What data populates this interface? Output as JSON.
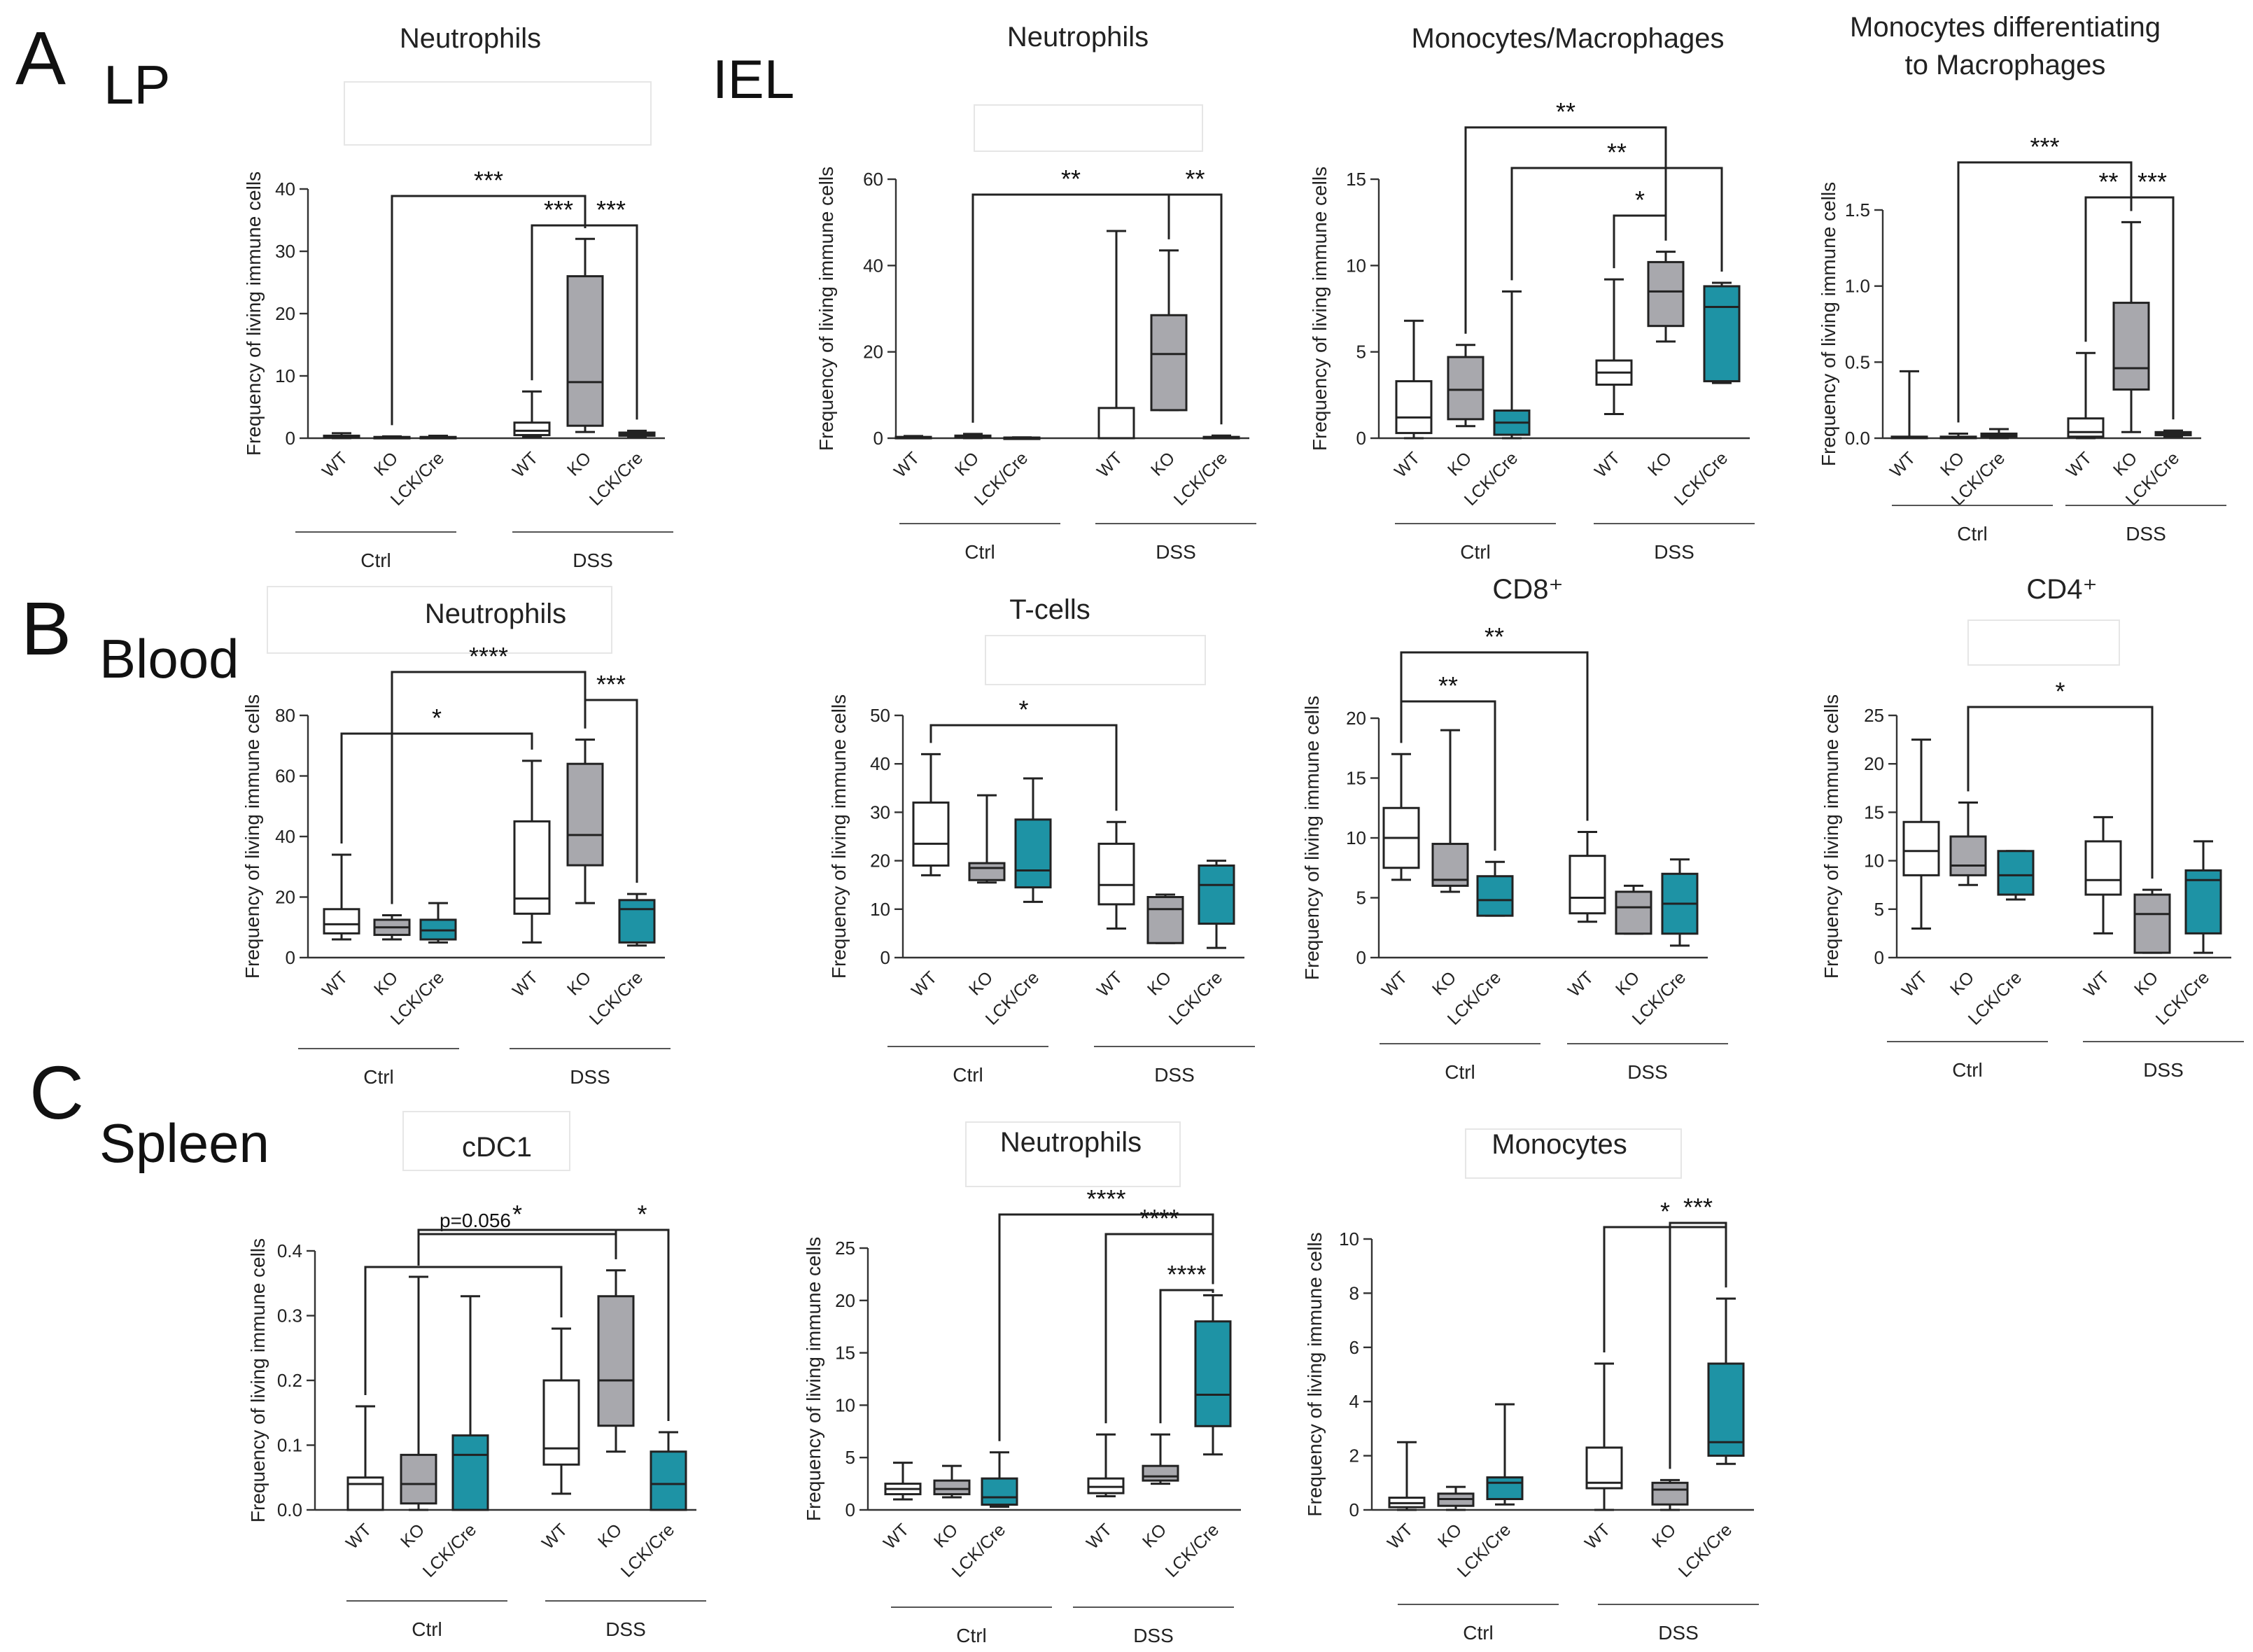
{
  "colors": {
    "WT": "#ffffff",
    "KO": "#a8a8ad",
    "LCK/Cre": "#1e93a5",
    "line": "#222222"
  },
  "sections": [
    {
      "letter": "A",
      "tissue": "LP"
    },
    {
      "letter": "",
      "tissue": "IEL"
    },
    {
      "letter": "B",
      "tissue": "Blood"
    },
    {
      "letter": "C",
      "tissue": "Spleen"
    }
  ],
  "groups": [
    "Ctrl",
    "DSS"
  ],
  "genotypes": [
    "WT",
    "KO",
    "LCK/Cre"
  ],
  "ylabel": "Frequency of living immune cells",
  "chart_data": [
    {
      "id": "lp-neutrophils",
      "type": "boxplot",
      "title": "Neutrophils",
      "ylabel": "Frequency of living immune cells",
      "ylim": [
        0,
        40
      ],
      "ticks": [
        0,
        10,
        20,
        30,
        40
      ],
      "tick_labels": [
        "0",
        "10",
        "20",
        "30",
        "40"
      ],
      "categories": [
        "WT",
        "KO",
        "LCK/Cre",
        "WT",
        "KO",
        "LCK/Cre"
      ],
      "groups": [
        "Ctrl",
        "DSS"
      ],
      "boxes": [
        [
          0.0,
          0.1,
          0.2,
          0.4,
          0.8
        ],
        [
          0.0,
          0.05,
          0.1,
          0.2,
          0.3
        ],
        [
          0.0,
          0.05,
          0.1,
          0.2,
          0.4
        ],
        [
          0.2,
          0.5,
          1.2,
          2.5,
          7.5
        ],
        [
          1.0,
          2.0,
          9.0,
          26.0,
          32.0
        ],
        [
          0.2,
          0.4,
          0.6,
          0.9,
          1.2
        ]
      ],
      "significance": [
        {
          "from": 1,
          "to": 4,
          "label": "***",
          "level": 3
        },
        {
          "from": 3,
          "to": 4,
          "label": "***",
          "level": 1
        },
        {
          "from": 4,
          "to": 5,
          "label": "***",
          "level": 1
        }
      ]
    },
    {
      "id": "iel-neutrophils",
      "type": "boxplot",
      "title": "Neutrophils",
      "ylabel": "Frequency of living immune cells",
      "ylim": [
        0,
        60
      ],
      "ticks": [
        0,
        20,
        40,
        60
      ],
      "tick_labels": [
        "0",
        "20",
        "40",
        "60"
      ],
      "categories": [
        "WT",
        "KO",
        "LCK/Cre",
        "WT",
        "KO",
        "LCK/Cre"
      ],
      "groups": [
        "Ctrl",
        "DSS"
      ],
      "boxes": [
        [
          0.0,
          0.1,
          0.2,
          0.3,
          0.5
        ],
        [
          0.0,
          0.2,
          0.4,
          0.6,
          1.0
        ],
        [
          0.0,
          0.05,
          0.1,
          0.15,
          0.2
        ],
        [
          0.0,
          0.0,
          0.0,
          7.0,
          48.0
        ],
        [
          6.5,
          6.5,
          19.5,
          28.5,
          43.5
        ],
        [
          0.0,
          0.1,
          0.2,
          0.3,
          0.6
        ]
      ],
      "significance": [
        {
          "from": 1,
          "to": 4,
          "label": "**",
          "level": 2
        },
        {
          "from": 4,
          "to": 5,
          "label": "**",
          "level": 2
        }
      ]
    },
    {
      "id": "iel-mono-mac",
      "type": "boxplot",
      "title": "Monocytes/Macrophages",
      "ylabel": "Frequency of living immune cells",
      "ylim": [
        0,
        15
      ],
      "ticks": [
        0,
        5,
        10,
        15
      ],
      "tick_labels": [
        "0",
        "5",
        "10",
        "15"
      ],
      "categories": [
        "WT",
        "KO",
        "LCK/Cre",
        "WT",
        "KO",
        "LCK/Cre"
      ],
      "groups": [
        "Ctrl",
        "DSS"
      ],
      "boxes": [
        [
          0.0,
          0.3,
          1.2,
          3.3,
          6.8
        ],
        [
          0.7,
          1.1,
          2.8,
          4.7,
          5.4
        ],
        [
          0.0,
          0.2,
          0.9,
          1.6,
          8.5
        ],
        [
          1.4,
          3.1,
          3.8,
          4.5,
          9.2
        ],
        [
          5.6,
          6.5,
          8.5,
          10.2,
          10.8
        ],
        [
          3.2,
          3.3,
          7.6,
          8.8,
          9.0
        ]
      ],
      "significance": [
        {
          "from": 1,
          "to": 4,
          "label": "**",
          "level": 3
        },
        {
          "from": 2,
          "to": 5,
          "label": "**",
          "level": 2
        },
        {
          "from": 3,
          "to": 4,
          "label": "*",
          "level": 1
        }
      ]
    },
    {
      "id": "iel-mono-diff",
      "type": "boxplot",
      "title": "Monocytes differentiating to Macrophages",
      "title_lines": [
        "Monocytes differentiating",
        "to Macrophages"
      ],
      "ylabel": "Frequency of living immune cells",
      "ylim": [
        0,
        1.5
      ],
      "ticks": [
        0,
        0.5,
        1.0,
        1.5
      ],
      "tick_labels": [
        "0.0",
        "0.5",
        "1.0",
        "1.5"
      ],
      "categories": [
        "WT",
        "KO",
        "LCK/Cre",
        "WT",
        "KO",
        "LCK/Cre"
      ],
      "groups": [
        "Ctrl",
        "DSS"
      ],
      "boxes": [
        [
          0.0,
          0.0,
          0.0,
          0.01,
          0.44
        ],
        [
          0.0,
          0.0,
          0.0,
          0.01,
          0.03
        ],
        [
          0.0,
          0.01,
          0.02,
          0.03,
          0.06
        ],
        [
          0.0,
          0.01,
          0.04,
          0.13,
          0.56
        ],
        [
          0.04,
          0.32,
          0.46,
          0.89,
          1.42
        ],
        [
          0.01,
          0.02,
          0.03,
          0.04,
          0.05
        ]
      ],
      "significance": [
        {
          "from": 1,
          "to": 4,
          "label": "***",
          "level": 3
        },
        {
          "from": 3,
          "to": 4,
          "label": "**",
          "level": 1
        },
        {
          "from": 4,
          "to": 5,
          "label": "***",
          "level": 1
        }
      ]
    },
    {
      "id": "blood-neutrophils",
      "type": "boxplot",
      "title": "Neutrophils",
      "ylabel": "Frequency of living immune cells",
      "ylim": [
        0,
        80
      ],
      "ticks": [
        0,
        20,
        40,
        60,
        80
      ],
      "tick_labels": [
        "0",
        "20",
        "40",
        "60",
        "80"
      ],
      "categories": [
        "WT",
        "KO",
        "LCK/Cre",
        "WT",
        "KO",
        "LCK/Cre"
      ],
      "groups": [
        "Ctrl",
        "DSS"
      ],
      "boxes": [
        [
          6.0,
          8.0,
          11.0,
          16.0,
          34.0
        ],
        [
          6.0,
          7.5,
          10.0,
          12.5,
          14.0
        ],
        [
          5.0,
          6.0,
          9.0,
          12.5,
          18.0
        ],
        [
          5.0,
          14.5,
          19.5,
          45.0,
          65.0
        ],
        [
          18.0,
          30.5,
          40.5,
          64.0,
          72.0
        ],
        [
          4.0,
          5.0,
          16.0,
          19.0,
          21.0
        ]
      ],
      "significance": [
        {
          "from": 0,
          "to": 3,
          "label": "*",
          "level": 1
        },
        {
          "from": 1,
          "to": 4,
          "label": "****",
          "level": 3
        },
        {
          "from": 4,
          "to": 5,
          "label": "***",
          "level": 2
        }
      ]
    },
    {
      "id": "blood-tcells",
      "type": "boxplot",
      "title": "T-cells",
      "ylabel": "Frequency of living immune cells",
      "ylim": [
        0,
        50
      ],
      "ticks": [
        0,
        10,
        20,
        30,
        40,
        50
      ],
      "tick_labels": [
        "0",
        "10",
        "20",
        "30",
        "40",
        "50"
      ],
      "categories": [
        "WT",
        "KO",
        "LCK/Cre",
        "WT",
        "KO",
        "LCK/Cre"
      ],
      "groups": [
        "Ctrl",
        "DSS"
      ],
      "boxes": [
        [
          17.0,
          19.0,
          23.5,
          32.0,
          42.0
        ],
        [
          15.5,
          16.0,
          18.5,
          19.5,
          33.5
        ],
        [
          11.5,
          14.5,
          18.0,
          28.5,
          37.0
        ],
        [
          6.0,
          11.0,
          15.0,
          23.5,
          28.0
        ],
        [
          3.0,
          3.0,
          10.0,
          12.5,
          13.0
        ],
        [
          2.0,
          7.0,
          15.0,
          19.0,
          20.0
        ]
      ],
      "significance": [
        {
          "from": 0,
          "to": 3,
          "label": "*",
          "level": 1
        }
      ]
    },
    {
      "id": "blood-cd8",
      "type": "boxplot",
      "title": "CD8⁺",
      "ylabel": "Frequency of living immune cells",
      "ylim": [
        0,
        20
      ],
      "ticks": [
        0,
        5,
        10,
        15,
        20
      ],
      "tick_labels": [
        "0",
        "5",
        "10",
        "15",
        "20"
      ],
      "categories": [
        "WT",
        "KO",
        "LCK/Cre",
        "WT",
        "KO",
        "LCK/Cre"
      ],
      "groups": [
        "Ctrl",
        "DSS"
      ],
      "boxes": [
        [
          6.5,
          7.5,
          10.0,
          12.5,
          17.0
        ],
        [
          5.5,
          6.0,
          6.5,
          9.5,
          19.0
        ],
        [
          3.5,
          3.5,
          4.8,
          6.8,
          8.0
        ],
        [
          3.0,
          3.7,
          5.0,
          8.5,
          10.5
        ],
        [
          2.0,
          2.0,
          4.2,
          5.5,
          6.0
        ],
        [
          1.0,
          2.0,
          4.5,
          7.0,
          8.2
        ]
      ],
      "significance": [
        {
          "from": 0,
          "to": 2,
          "label": "**",
          "level": 1
        },
        {
          "from": 0,
          "to": 3,
          "label": "**",
          "level": 2
        }
      ]
    },
    {
      "id": "blood-cd4",
      "type": "boxplot",
      "title": "CD4⁺",
      "ylabel": "Frequency of living immune cells",
      "ylim": [
        0,
        25
      ],
      "ticks": [
        0,
        5,
        10,
        15,
        20,
        25
      ],
      "tick_labels": [
        "0",
        "5",
        "10",
        "15",
        "20",
        "25"
      ],
      "categories": [
        "WT",
        "KO",
        "LCK/Cre",
        "WT",
        "KO",
        "LCK/Cre"
      ],
      "groups": [
        "Ctrl",
        "DSS"
      ],
      "boxes": [
        [
          3.0,
          8.5,
          11.0,
          14.0,
          22.5
        ],
        [
          7.5,
          8.5,
          9.5,
          12.5,
          16.0
        ],
        [
          6.0,
          6.5,
          8.5,
          11.0,
          11.0
        ],
        [
          2.5,
          6.5,
          8.0,
          12.0,
          14.5
        ],
        [
          0.5,
          0.5,
          4.5,
          6.5,
          7.0
        ],
        [
          0.5,
          2.5,
          8.0,
          9.0,
          12.0
        ]
      ],
      "significance": [
        {
          "from": 1,
          "to": 4,
          "label": "*",
          "level": 1
        }
      ]
    },
    {
      "id": "spleen-cdc1",
      "type": "boxplot",
      "title": "cDC1",
      "ylabel": "Frequency of living immune cells",
      "ylim": [
        0,
        0.4
      ],
      "ticks": [
        0,
        0.1,
        0.2,
        0.3,
        0.4
      ],
      "tick_labels": [
        "0.0",
        "0.1",
        "0.2",
        "0.3",
        "0.4"
      ],
      "categories": [
        "WT",
        "KO",
        "LCK/Cre",
        "WT",
        "KO",
        "LCK/Cre"
      ],
      "groups": [
        "Ctrl",
        "DSS"
      ],
      "boxes": [
        [
          0.0,
          0.0,
          0.04,
          0.05,
          0.16
        ],
        [
          0.0,
          0.01,
          0.04,
          0.085,
          0.36
        ],
        [
          0.0,
          0.0,
          0.085,
          0.115,
          0.33
        ],
        [
          0.025,
          0.07,
          0.095,
          0.2,
          0.28
        ],
        [
          0.09,
          0.13,
          0.2,
          0.33,
          0.37
        ],
        [
          0.0,
          0.0,
          0.04,
          0.09,
          0.12
        ]
      ],
      "significance": [
        {
          "from": 0,
          "to": 3,
          "label": "",
          "level": 1
        },
        {
          "from": 1,
          "to": 4,
          "label": "p=0.056",
          "level": 2
        },
        {
          "from": 1,
          "to": 4,
          "label": "*",
          "level": 3
        },
        {
          "from": 4,
          "to": 5,
          "label": "*",
          "level": 3
        }
      ]
    },
    {
      "id": "spleen-neutrophils",
      "type": "boxplot",
      "title": "Neutrophils",
      "ylabel": "Frequency of living immune cells",
      "ylim": [
        0,
        25
      ],
      "ticks": [
        0,
        5,
        10,
        15,
        20,
        25
      ],
      "tick_labels": [
        "0",
        "5",
        "10",
        "15",
        "20",
        "25"
      ],
      "categories": [
        "WT",
        "KO",
        "LCK/Cre",
        "WT",
        "KO",
        "LCK/Cre"
      ],
      "groups": [
        "Ctrl",
        "DSS"
      ],
      "boxes": [
        [
          1.0,
          1.5,
          2.0,
          2.5,
          4.5
        ],
        [
          1.2,
          1.5,
          2.0,
          2.8,
          4.2
        ],
        [
          0.3,
          0.5,
          1.2,
          3.0,
          5.5
        ],
        [
          1.3,
          1.6,
          2.2,
          3.0,
          7.2
        ],
        [
          2.5,
          2.8,
          3.2,
          4.2,
          7.2
        ],
        [
          5.3,
          8.0,
          11.0,
          18.0,
          20.5
        ]
      ],
      "significance": [
        {
          "from": 2,
          "to": 5,
          "label": "****",
          "level": 3
        },
        {
          "from": 3,
          "to": 5,
          "label": "****",
          "level": 2
        },
        {
          "from": 4,
          "to": 5,
          "label": "****",
          "level": 1
        }
      ]
    },
    {
      "id": "spleen-monocytes",
      "type": "boxplot",
      "title": "Monocytes",
      "ylabel": "Frequency of living immune cells",
      "ylim": [
        0,
        10
      ],
      "ticks": [
        0,
        2,
        4,
        6,
        8,
        10
      ],
      "tick_labels": [
        "0",
        "2",
        "4",
        "6",
        "8",
        "10"
      ],
      "categories": [
        "WT",
        "KO",
        "LCK/Cre",
        "WT",
        "KO",
        "LCK/Cre"
      ],
      "groups": [
        "Ctrl",
        "DSS"
      ],
      "boxes": [
        [
          0.0,
          0.1,
          0.25,
          0.45,
          2.5
        ],
        [
          0.0,
          0.15,
          0.4,
          0.6,
          0.85
        ],
        [
          0.2,
          0.4,
          1.0,
          1.2,
          3.9
        ],
        [
          0.0,
          0.8,
          1.0,
          2.3,
          5.4
        ],
        [
          0.0,
          0.2,
          0.75,
          1.0,
          1.1
        ],
        [
          1.7,
          2.0,
          2.5,
          5.4,
          7.8
        ]
      ],
      "significance": [
        {
          "from": 3,
          "to": 5,
          "label": "*",
          "level": 2
        },
        {
          "from": 4,
          "to": 5,
          "label": "***",
          "level": 1
        }
      ]
    }
  ]
}
